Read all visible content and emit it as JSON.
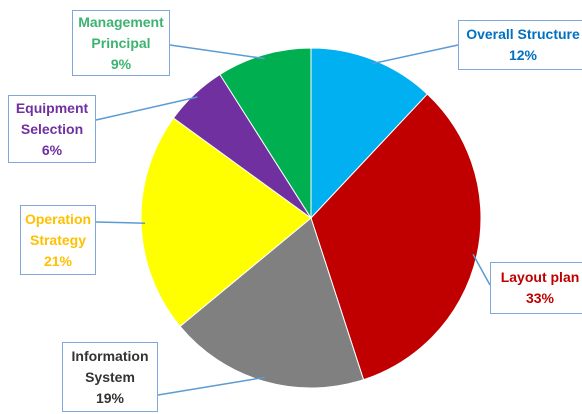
{
  "chart_data": {
    "type": "pie",
    "categories": [
      "Overall Structure",
      "Layout plan",
      "Information System",
      "Operation Strategy",
      "Equipment Selection",
      "Management Principal"
    ],
    "values": [
      12,
      33,
      19,
      21,
      6,
      9
    ],
    "value_labels": [
      "12%",
      "33%",
      "19%",
      "21%",
      "6%",
      "9%"
    ],
    "colors": [
      "#00b0f0",
      "#c00000",
      "#808080",
      "#ffff00",
      "#7030a0",
      "#00b050"
    ],
    "label_colors": [
      "#0070c0",
      "#c00000",
      "#333333",
      "#ffc000",
      "#7030a0",
      "#3cb371"
    ]
  }
}
